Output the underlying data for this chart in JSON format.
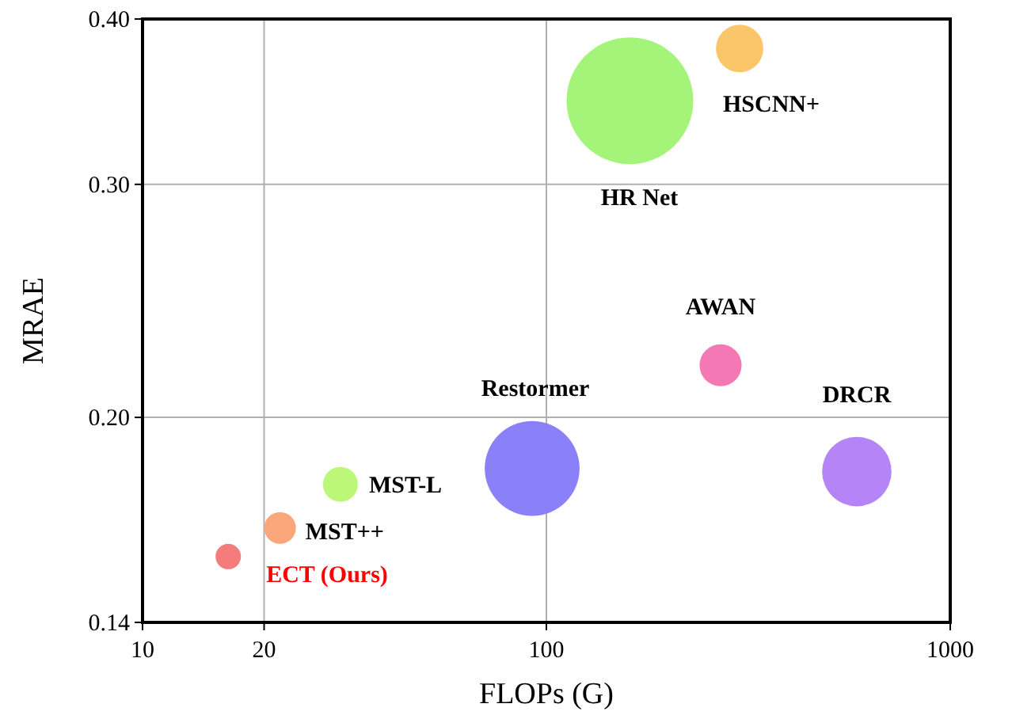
{
  "chart_data": {
    "type": "bubble",
    "xlabel": "FLOPs (G)",
    "ylabel": "MRAE",
    "log": "xy",
    "grid": true,
    "xlim": [
      10,
      1000
    ],
    "xticks": [
      10,
      20,
      100,
      1000
    ],
    "ylim": [
      0.14,
      0.4
    ],
    "yticks": [
      0.14,
      {
        "value": 0.2,
        "label": "0.20"
      },
      {
        "value": 0.3,
        "label": "0.30"
      },
      {
        "value": 0.4,
        "label": "0.40"
      }
    ],
    "series": [
      {
        "name": "ECT (Ours)",
        "color": "#f47c7c",
        "x": [
          16.3
        ],
        "values": [
          0.157
        ],
        "sizes": [
          0.04
        ]
      },
      {
        "name": "MST++",
        "color": "#f9a77a",
        "x": [
          21.9
        ],
        "values": [
          0.165
        ],
        "sizes": [
          0.0625
        ]
      },
      {
        "name": "MST-L",
        "color": "#bdf77a",
        "x": [
          30.9
        ],
        "values": [
          0.178
        ],
        "sizes": [
          0.076
        ]
      },
      {
        "name": "Restormer",
        "color": "#8a80f7",
        "x": [
          92.2
        ],
        "values": [
          0.183
        ],
        "sizes": [
          0.56
        ]
      },
      {
        "name": "AWAN",
        "color": "#f478b4",
        "x": [
          270
        ],
        "values": [
          0.219
        ],
        "sizes": [
          0.11
        ]
      },
      {
        "name": "DRCR",
        "color": "#b584f7",
        "x": [
          587
        ],
        "values": [
          0.182
        ],
        "sizes": [
          0.3
        ]
      },
      {
        "name": "HR Net",
        "color": "#a4f47a",
        "x": [
          161
        ],
        "values": [
          0.347
        ],
        "sizes": [
          1
        ]
      },
      {
        "name": "HSCNN+",
        "color": "#fbc56a",
        "x": [
          301
        ],
        "values": [
          0.38
        ],
        "sizes": [
          0.14
        ]
      }
    ]
  }
}
